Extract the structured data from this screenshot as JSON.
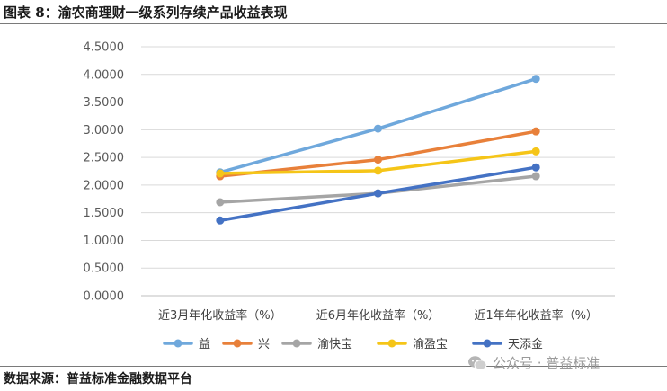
{
  "figure_title": "图表 8：渝农商理财一级系列存续产品收益表现",
  "source_note": "数据来源：普益标准金融数据平台",
  "watermark": "公众号 · 普益标准",
  "chart_data": {
    "type": "line",
    "categories": [
      "近3月年化收益率（%）",
      "近6月年化收益率（%）",
      "近1年年化收益率（%）"
    ],
    "series": [
      {
        "name": "益",
        "color": "#6FA8DC",
        "values": [
          2.23,
          3.02,
          3.92
        ]
      },
      {
        "name": "兴",
        "color": "#E8803A",
        "values": [
          2.16,
          2.46,
          2.97
        ]
      },
      {
        "name": "渝快宝",
        "color": "#A5A5A5",
        "values": [
          1.69,
          1.85,
          2.16
        ]
      },
      {
        "name": "渝盈宝",
        "color": "#F5C518",
        "values": [
          2.21,
          2.26,
          2.61
        ]
      },
      {
        "name": "天添金",
        "color": "#4472C4",
        "values": [
          1.36,
          1.85,
          2.32
        ]
      }
    ],
    "yticks": [
      "0.0000",
      "0.5000",
      "1.0000",
      "1.5000",
      "2.0000",
      "2.5000",
      "3.0000",
      "3.5000",
      "4.0000",
      "4.5000"
    ],
    "ylim": [
      0,
      4.5
    ],
    "grid": true,
    "legend": "bottom"
  }
}
